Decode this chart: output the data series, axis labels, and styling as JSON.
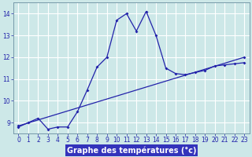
{
  "xlabel": "Graphe des températures (°c)",
  "background_color": "#cde8e8",
  "grid_color": "#b0d4d4",
  "line_color": "#2222aa",
  "xlim": [
    -0.5,
    23.5
  ],
  "ylim": [
    8.5,
    14.5
  ],
  "yticks": [
    9,
    10,
    11,
    12,
    13,
    14
  ],
  "xticks": [
    0,
    1,
    2,
    3,
    4,
    5,
    6,
    7,
    8,
    9,
    10,
    11,
    12,
    13,
    14,
    15,
    16,
    17,
    18,
    19,
    20,
    21,
    22,
    23
  ],
  "curve1_x": [
    0,
    1,
    2,
    3,
    4,
    5,
    6,
    7,
    8,
    9,
    10,
    11,
    12,
    13,
    14,
    15,
    16,
    17,
    18,
    19,
    20,
    21,
    22,
    23
  ],
  "curve1_y": [
    8.8,
    9.0,
    9.2,
    8.7,
    8.8,
    8.8,
    9.5,
    10.5,
    11.55,
    12.0,
    13.7,
    14.0,
    13.2,
    14.1,
    13.0,
    11.5,
    11.25,
    11.2,
    11.3,
    11.4,
    11.6,
    11.65,
    11.7,
    11.75
  ],
  "curve2_x": [
    0,
    23
  ],
  "curve2_y": [
    8.85,
    12.0
  ],
  "xlabel_fontsize": 7,
  "tick_fontsize": 5.5,
  "xlabel_color": "#1111bb",
  "spine_color": "#7799aa",
  "bottom_bg": "#3333bb"
}
